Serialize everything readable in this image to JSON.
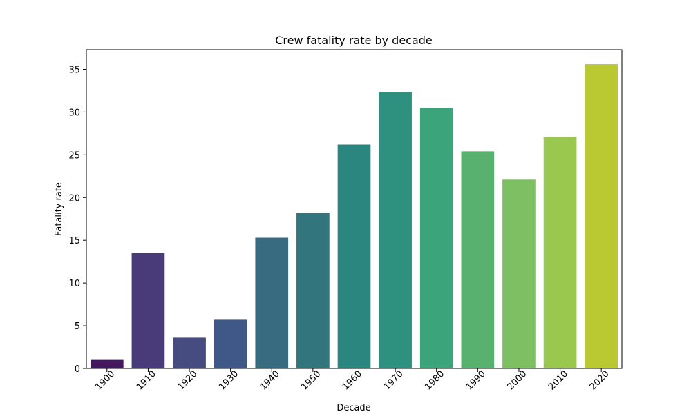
{
  "chart_data": {
    "type": "bar",
    "title": "Crew fatality rate by decade",
    "xlabel": "Decade",
    "ylabel": "Fatality rate",
    "categories": [
      "1900",
      "1910",
      "1920",
      "1930",
      "1940",
      "1950",
      "1960",
      "1970",
      "1980",
      "1990",
      "2000",
      "2010",
      "2020"
    ],
    "values": [
      1.0,
      13.5,
      3.6,
      5.7,
      15.3,
      18.2,
      26.2,
      32.3,
      30.5,
      25.4,
      22.1,
      27.1,
      35.6
    ],
    "colors": [
      "#44185e",
      "#493a7a",
      "#464b80",
      "#3f5887",
      "#386a80",
      "#33757c",
      "#2b8680",
      "#2e917f",
      "#3ca47a",
      "#58b16f",
      "#7ebf63",
      "#9ac74e",
      "#bac932"
    ],
    "ylim": [
      0,
      37.3
    ],
    "yticks": [
      0,
      5,
      10,
      15,
      20,
      25,
      30,
      35
    ],
    "grid": false,
    "legend": "none"
  }
}
